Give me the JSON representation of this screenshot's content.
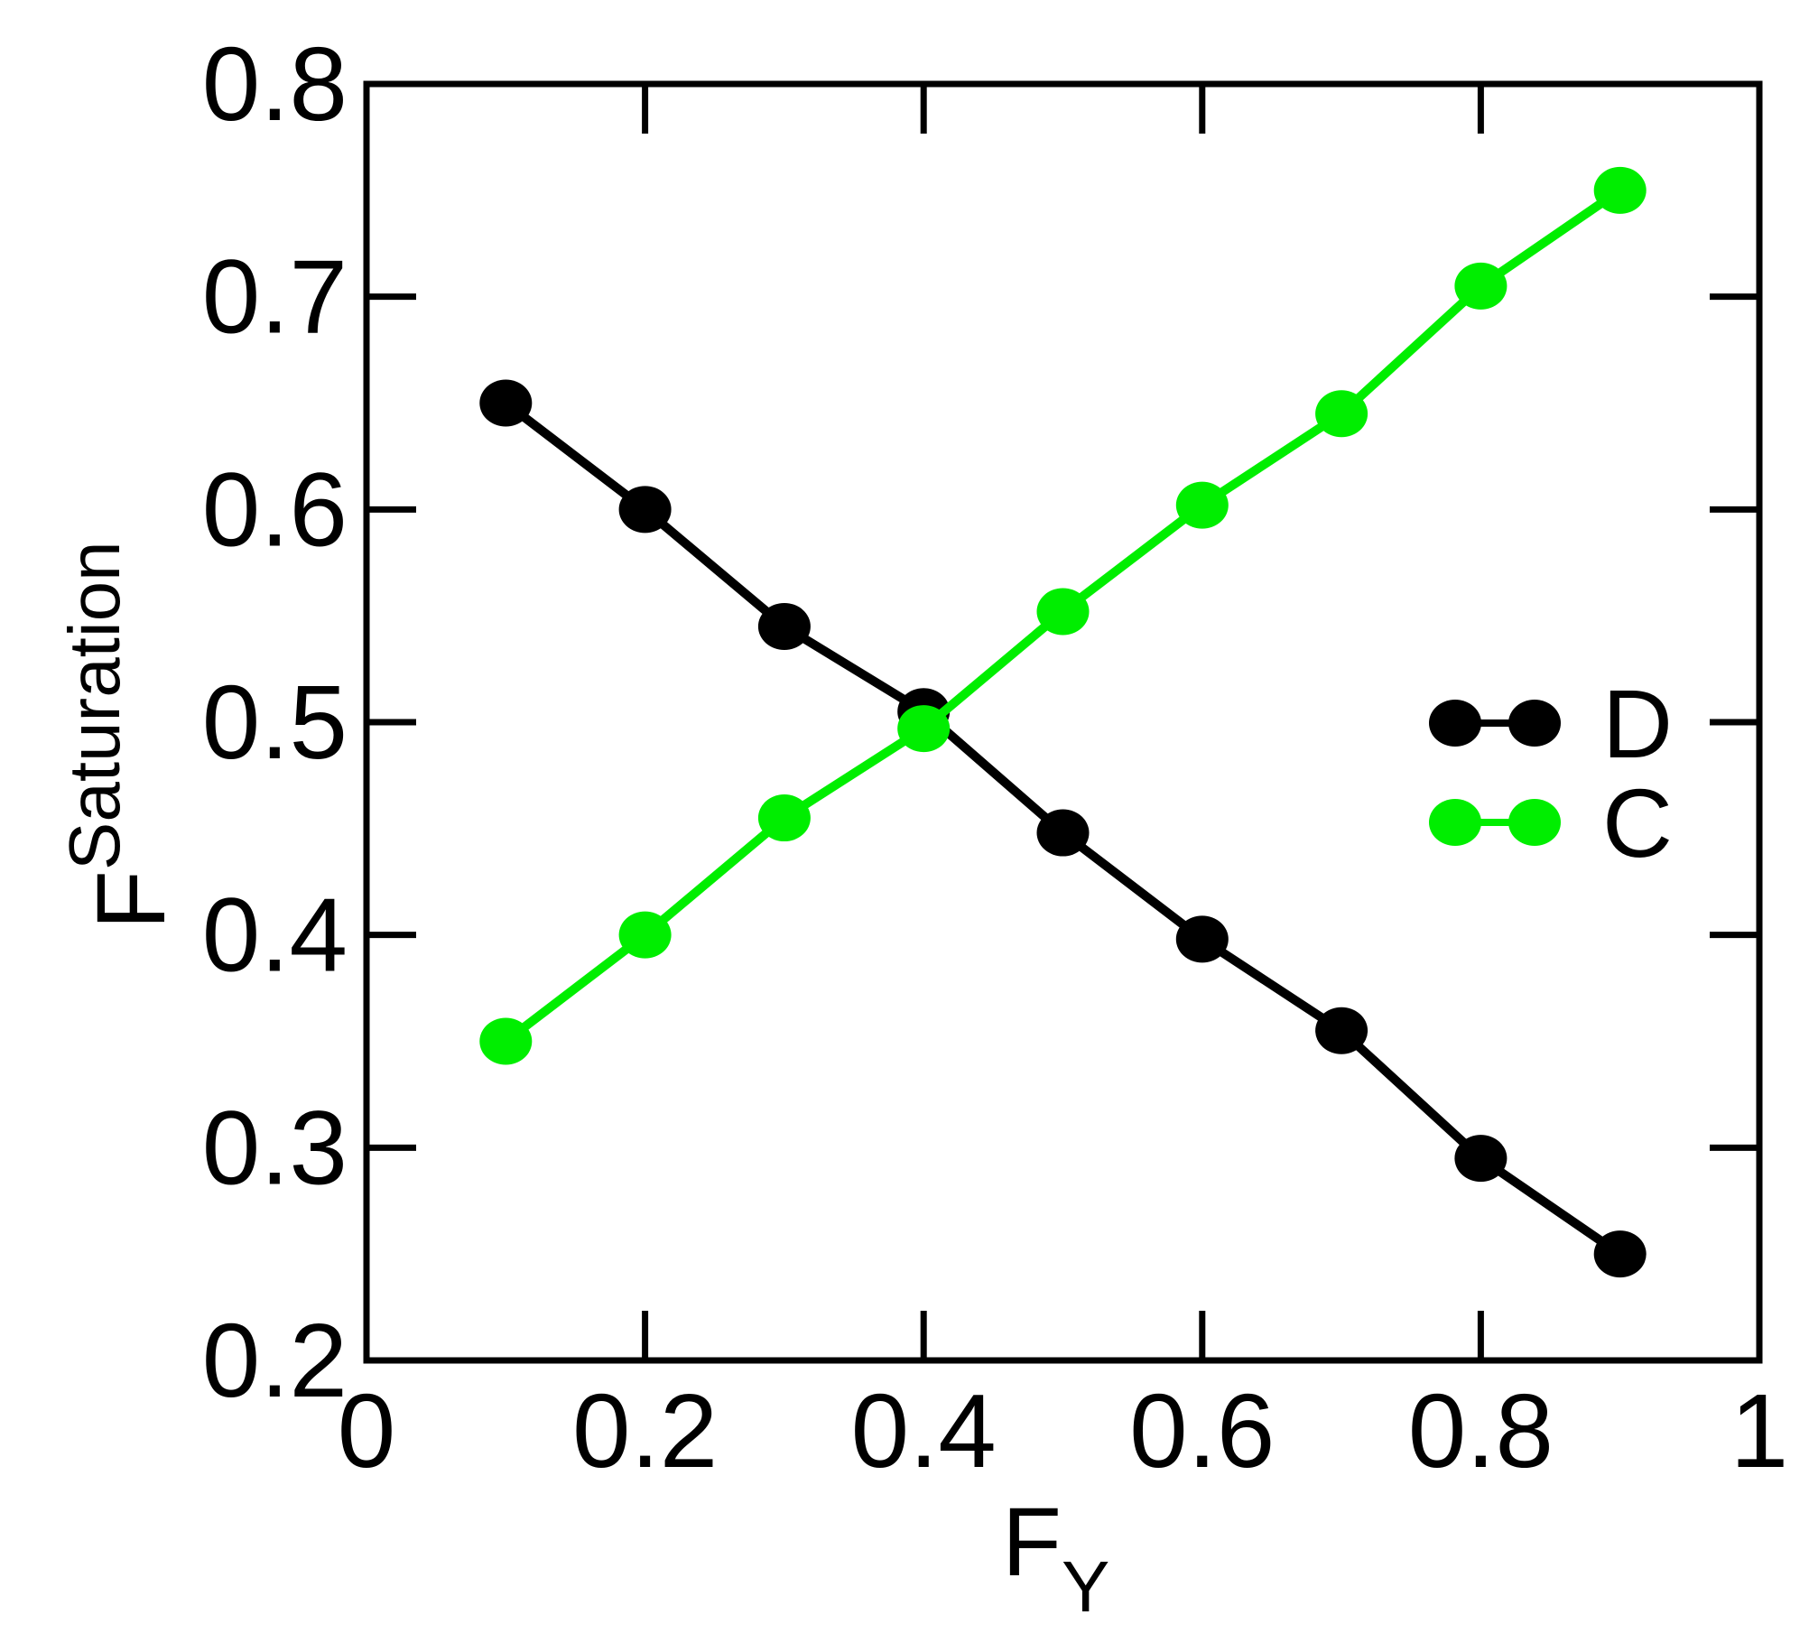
{
  "chart_data": {
    "type": "line",
    "x_label": "F",
    "x_label_sub": "Y",
    "y_label": "F",
    "y_label_sup": "Saturation",
    "x": [
      0.1,
      0.2,
      0.3,
      0.4,
      0.5,
      0.6,
      0.7,
      0.8,
      0.9
    ],
    "series": [
      {
        "name": "D",
        "color": "#000000",
        "values": [
          0.65,
          0.6,
          0.545,
          0.505,
          0.448,
          0.398,
          0.355,
          0.295,
          0.25
        ]
      },
      {
        "name": "C",
        "color": "#00ee00",
        "values": [
          0.35,
          0.4,
          0.455,
          0.497,
          0.552,
          0.602,
          0.645,
          0.705,
          0.75
        ]
      }
    ],
    "xlim": [
      0,
      1
    ],
    "xticks": [
      0,
      0.2,
      0.4,
      0.6,
      0.8,
      1
    ],
    "ylim": [
      0.2,
      0.8
    ],
    "yticks": [
      0.2,
      0.3,
      0.4,
      0.5,
      0.6,
      0.7,
      0.8
    ],
    "grid": false,
    "legend": "center right"
  }
}
